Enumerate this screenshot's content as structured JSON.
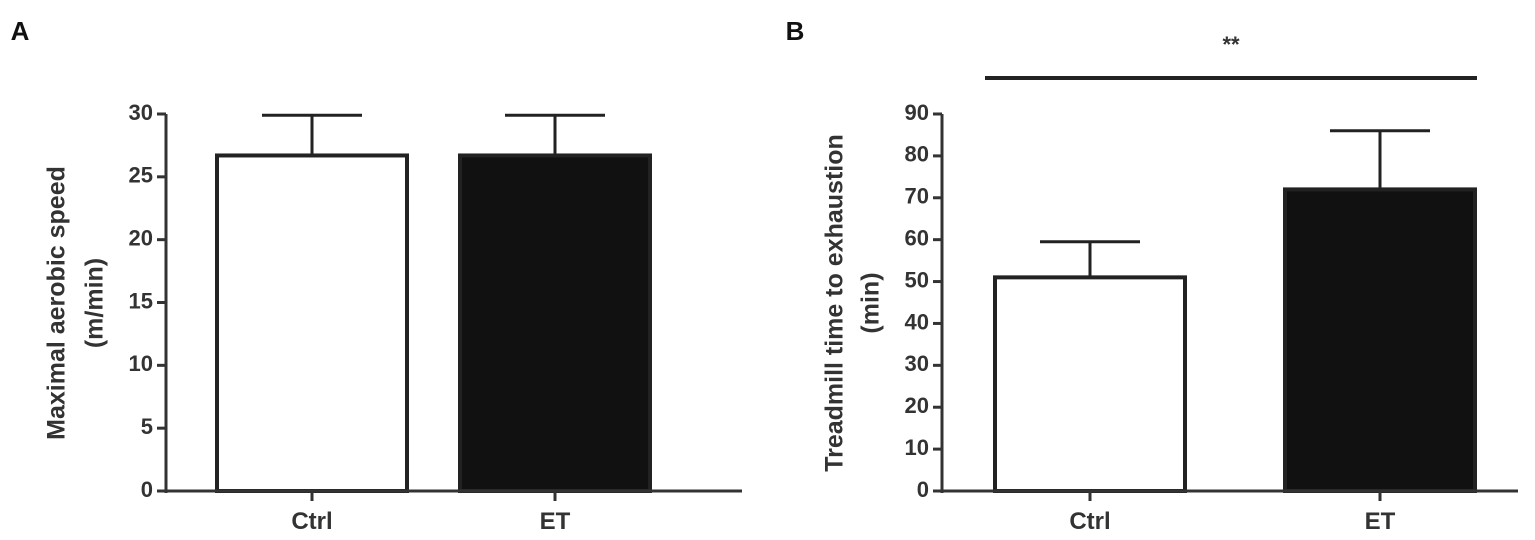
{
  "chart_data": [
    {
      "type": "bar",
      "panel_label": "A",
      "categories": [
        "Ctrl",
        "ET"
      ],
      "values": [
        26.7,
        26.7
      ],
      "errors": [
        3.2,
        3.2
      ],
      "bar_colors": [
        "#ffffff",
        "#111111"
      ],
      "ylabel_lines": [
        "Maximal aerobic speed",
        "(m/min)"
      ],
      "ylim": [
        0,
        30
      ],
      "yticks": [
        0,
        5,
        10,
        15,
        20,
        25,
        30
      ],
      "significance": null,
      "grid": false
    },
    {
      "type": "bar",
      "panel_label": "B",
      "categories": [
        "Ctrl",
        "ET"
      ],
      "values": [
        51,
        72
      ],
      "errors": [
        8.5,
        14
      ],
      "bar_colors": [
        "#ffffff",
        "#111111"
      ],
      "ylabel_lines": [
        "Treadmill time to exhaustion",
        "(min)"
      ],
      "ylim": [
        0,
        90
      ],
      "yticks": [
        0,
        10,
        20,
        30,
        40,
        50,
        60,
        70,
        80,
        90
      ],
      "significance": "**",
      "grid": false
    }
  ],
  "colors": {
    "axis": "#333333",
    "bar_stroke": "#222222"
  }
}
